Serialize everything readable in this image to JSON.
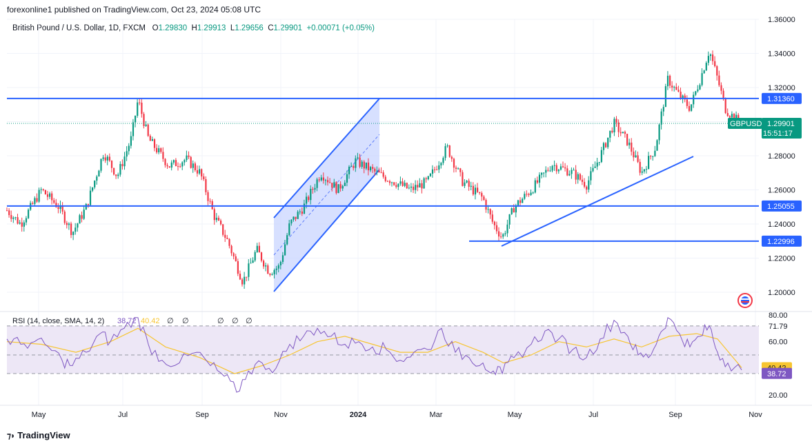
{
  "header": {
    "published": "forexonline1 published on TradingView.com, Oct 23, 2024 05:08 UTC",
    "symbol": "British Pound / U.S. Dollar, 1D, FXCM",
    "o_label": "O",
    "o_value": "1.29830",
    "h_label": "H",
    "h_value": "1.29913",
    "l_label": "L",
    "l_value": "1.29656",
    "c_label": "C",
    "c_value": "1.29901",
    "change": "+0.00071 (+0.05%)"
  },
  "footer": {
    "brand": "TradingView"
  },
  "colors": {
    "up": "#089981",
    "down": "#f23645",
    "line": "#2962ff",
    "channel_fill": "#c9d5ff",
    "rsi_line": "#7e57c2",
    "rsi_sma": "#f7c531",
    "rsi_band": "#ede7f6",
    "grid": "#f0f3fa",
    "price_tag": "#089981"
  },
  "chart_data": {
    "type": "candlestick",
    "symbol_tag": "GBPUSD",
    "last_price": "1.29901",
    "countdown": "15:51:17",
    "y_ticks": [
      "1.36000",
      "1.34000",
      "1.32000",
      "1.30000",
      "1.28000",
      "1.26000",
      "1.24000",
      "1.22000",
      "1.20000"
    ],
    "y_tick_values": [
      1.36,
      1.34,
      1.32,
      1.3,
      1.28,
      1.26,
      1.24,
      1.22,
      1.2
    ],
    "x_ticks": [
      "May",
      "Jul",
      "Sep",
      "Nov",
      "2024",
      "Mar",
      "May",
      "Jul",
      "Sep",
      "Nov"
    ],
    "horizontal_levels": [
      {
        "label": "1.31360",
        "value": 1.3136
      },
      {
        "label": "1.25055",
        "value": 1.25055
      },
      {
        "label": "1.22996",
        "value": 1.22996
      }
    ],
    "price_path": [
      [
        0,
        1.252
      ],
      [
        30,
        1.24
      ],
      [
        60,
        1.26
      ],
      [
        85,
        1.25
      ],
      [
        105,
        1.235
      ],
      [
        125,
        1.25
      ],
      [
        150,
        1.282
      ],
      [
        170,
        1.268
      ],
      [
        190,
        1.29
      ],
      [
        200,
        1.313
      ],
      [
        215,
        1.29
      ],
      [
        245,
        1.274
      ],
      [
        270,
        1.278
      ],
      [
        290,
        1.27
      ],
      [
        310,
        1.245
      ],
      [
        330,
        1.23
      ],
      [
        352,
        1.206
      ],
      [
        372,
        1.225
      ],
      [
        390,
        1.212
      ],
      [
        405,
        1.215
      ],
      [
        420,
        1.24
      ],
      [
        440,
        1.25
      ],
      [
        465,
        1.27
      ],
      [
        490,
        1.26
      ],
      [
        515,
        1.277
      ],
      [
        545,
        1.27
      ],
      [
        570,
        1.265
      ],
      [
        595,
        1.26
      ],
      [
        620,
        1.265
      ],
      [
        648,
        1.285
      ],
      [
        670,
        1.265
      ],
      [
        700,
        1.255
      ],
      [
        715,
        1.24
      ],
      [
        728,
        1.232
      ],
      [
        745,
        1.25
      ],
      [
        770,
        1.26
      ],
      [
        800,
        1.275
      ],
      [
        830,
        1.27
      ],
      [
        850,
        1.263
      ],
      [
        870,
        1.28
      ],
      [
        890,
        1.299
      ],
      [
        910,
        1.288
      ],
      [
        930,
        1.27
      ],
      [
        950,
        1.285
      ],
      [
        968,
        1.325
      ],
      [
        985,
        1.315
      ],
      [
        1000,
        1.308
      ],
      [
        1015,
        1.325
      ],
      [
        1028,
        1.342
      ],
      [
        1040,
        1.325
      ],
      [
        1052,
        1.307
      ],
      [
        1065,
        1.302
      ],
      [
        1075,
        1.299
      ]
    ],
    "rsi": {
      "label": "RSI (14, close, SMA, 14, 2)",
      "rsi_value": "38.72",
      "sma_value": "40.42",
      "empty_marks": [
        "∅",
        "∅",
        "∅",
        "∅",
        "∅"
      ],
      "levels": [
        "80.00",
        "71.79",
        "60.00",
        "36.06",
        "20.00"
      ],
      "level_values": [
        80,
        71.79,
        60,
        36.06,
        20
      ],
      "path": [
        [
          10,
          62
        ],
        [
          30,
          58
        ],
        [
          50,
          60
        ],
        [
          70,
          56
        ],
        [
          90,
          46
        ],
        [
          105,
          42
        ],
        [
          125,
          52
        ],
        [
          145,
          66
        ],
        [
          160,
          60
        ],
        [
          180,
          70
        ],
        [
          200,
          78
        ],
        [
          215,
          58
        ],
        [
          235,
          46
        ],
        [
          260,
          44
        ],
        [
          285,
          52
        ],
        [
          305,
          42
        ],
        [
          325,
          34
        ],
        [
          343,
          22
        ],
        [
          360,
          38
        ],
        [
          380,
          44
        ],
        [
          400,
          40
        ],
        [
          420,
          58
        ],
        [
          440,
          64
        ],
        [
          460,
          70
        ],
        [
          480,
          64
        ],
        [
          500,
          58
        ],
        [
          520,
          60
        ],
        [
          540,
          56
        ],
        [
          560,
          54
        ],
        [
          580,
          46
        ],
        [
          600,
          52
        ],
        [
          620,
          54
        ],
        [
          640,
          70
        ],
        [
          660,
          52
        ],
        [
          680,
          48
        ],
        [
          700,
          44
        ],
        [
          715,
          38
        ],
        [
          728,
          36
        ],
        [
          745,
          48
        ],
        [
          770,
          58
        ],
        [
          790,
          68
        ],
        [
          810,
          62
        ],
        [
          830,
          54
        ],
        [
          850,
          48
        ],
        [
          870,
          62
        ],
        [
          890,
          76
        ],
        [
          910,
          64
        ],
        [
          925,
          50
        ],
        [
          940,
          48
        ],
        [
          955,
          64
        ],
        [
          968,
          78
        ],
        [
          985,
          66
        ],
        [
          1000,
          56
        ],
        [
          1015,
          64
        ],
        [
          1028,
          72
        ],
        [
          1040,
          52
        ],
        [
          1055,
          44
        ],
        [
          1075,
          38.72
        ]
      ],
      "sma_path": [
        [
          10,
          60
        ],
        [
          60,
          58
        ],
        [
          110,
          52
        ],
        [
          160,
          60
        ],
        [
          200,
          70
        ],
        [
          240,
          56
        ],
        [
          290,
          48
        ],
        [
          340,
          36
        ],
        [
          380,
          42
        ],
        [
          420,
          50
        ],
        [
          460,
          60
        ],
        [
          500,
          64
        ],
        [
          540,
          58
        ],
        [
          580,
          52
        ],
        [
          620,
          52
        ],
        [
          660,
          60
        ],
        [
          700,
          52
        ],
        [
          730,
          44
        ],
        [
          770,
          50
        ],
        [
          810,
          60
        ],
        [
          850,
          56
        ],
        [
          890,
          62
        ],
        [
          930,
          56
        ],
        [
          970,
          64
        ],
        [
          1010,
          66
        ],
        [
          1040,
          62
        ],
        [
          1075,
          40.42
        ]
      ]
    }
  }
}
